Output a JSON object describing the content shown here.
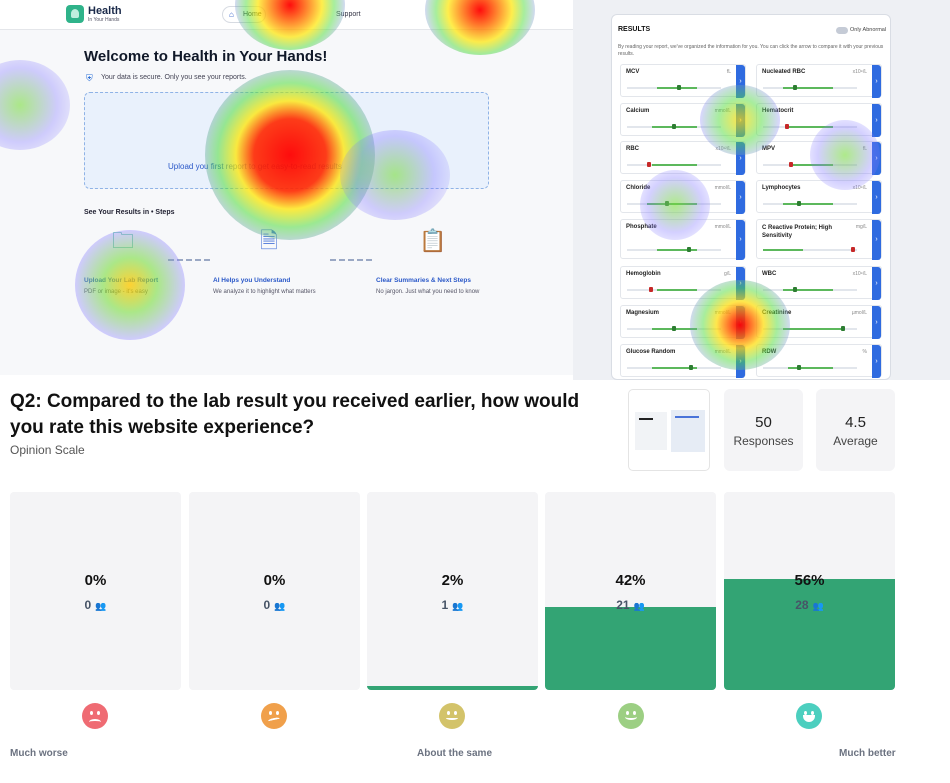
{
  "heatmap": {
    "app": {
      "logo_title": "Health",
      "logo_subtitle": "In Your Hands",
      "nav_home": "Home",
      "nav_support": "Support",
      "home_icon": "home-icon",
      "welcome": "Welcome to Health in Your Hands!",
      "secure_icon": "shield-icon",
      "secure_text": "Your data is secure. Only you see your reports.",
      "upload_text": "Upload you first report to get easy-to-read results",
      "steps_title": "See Your Results in • Steps",
      "steps": [
        {
          "icon": "folder-icon",
          "title": "Upload Your Lab Report",
          "desc": "PDF or image - it's easy"
        },
        {
          "icon": "document-scan-icon",
          "title": "AI Helps you Understand",
          "desc": "We analyze it to highlight what matters"
        },
        {
          "icon": "clipboard-icon",
          "title": "Clear Summaries & Next Steps",
          "desc": "No jargon. Just what you need to know"
        }
      ]
    },
    "results": {
      "title": "RESULTS",
      "toggle_label": "Only Abnormal",
      "description": "By reading your report, we've organized the information for you. You can click the arrow to compare it with your previous results.",
      "items": [
        {
          "name": "MCV",
          "unit": "fL"
        },
        {
          "name": "Nucleated RBC",
          "unit": "x10⁹/L"
        },
        {
          "name": "Calcium",
          "unit": "mmol/L"
        },
        {
          "name": "Hematocrit",
          "unit": ""
        },
        {
          "name": "RBC",
          "unit": "x10¹²/L"
        },
        {
          "name": "MPV",
          "unit": "fL"
        },
        {
          "name": "Chloride",
          "unit": "mmol/L"
        },
        {
          "name": "Lymphocytes",
          "unit": "x10⁹/L"
        },
        {
          "name": "Phosphate",
          "unit": "mmol/L"
        },
        {
          "name": "C Reactive Protein; High Sensitivity",
          "unit": "mg/L"
        },
        {
          "name": "Hemoglobin",
          "unit": "g/L"
        },
        {
          "name": "WBC",
          "unit": "x10⁹/L"
        },
        {
          "name": "Magnesium",
          "unit": "mmol/L"
        },
        {
          "name": "Creatinine",
          "unit": "µmol/L"
        },
        {
          "name": "Glucose Random",
          "unit": "mmol/L"
        },
        {
          "name": "RDW",
          "unit": "%"
        }
      ]
    }
  },
  "question": {
    "title": "Q2: Compared to the lab result you received earlier, how would you rate this website experience?",
    "type": "Opinion Scale",
    "responses_value": "50",
    "responses_label": "Responses",
    "average_value": "4.5",
    "average_label": "Average"
  },
  "scale": {
    "fill_color": "#33a474",
    "options": [
      {
        "percent_label": "0%",
        "count": "0",
        "fraction": 0.0,
        "face_icon": "sad-face-icon",
        "face_color": "#ef6b73"
      },
      {
        "percent_label": "0%",
        "count": "0",
        "fraction": 0.0,
        "face_icon": "unsure-face-icon",
        "face_color": "#f0a04b"
      },
      {
        "percent_label": "2%",
        "count": "1",
        "fraction": 0.02,
        "face_icon": "neutral-face-icon",
        "face_color": "#d3c36a"
      },
      {
        "percent_label": "42%",
        "count": "21",
        "fraction": 0.42,
        "face_icon": "smile-face-icon",
        "face_color": "#9ccf83"
      },
      {
        "percent_label": "56%",
        "count": "28",
        "fraction": 0.56,
        "face_icon": "grin-face-icon",
        "face_color": "#4ccfbf"
      }
    ],
    "labels": {
      "left": "Much worse",
      "middle": "About the same",
      "right": "Much better"
    }
  }
}
